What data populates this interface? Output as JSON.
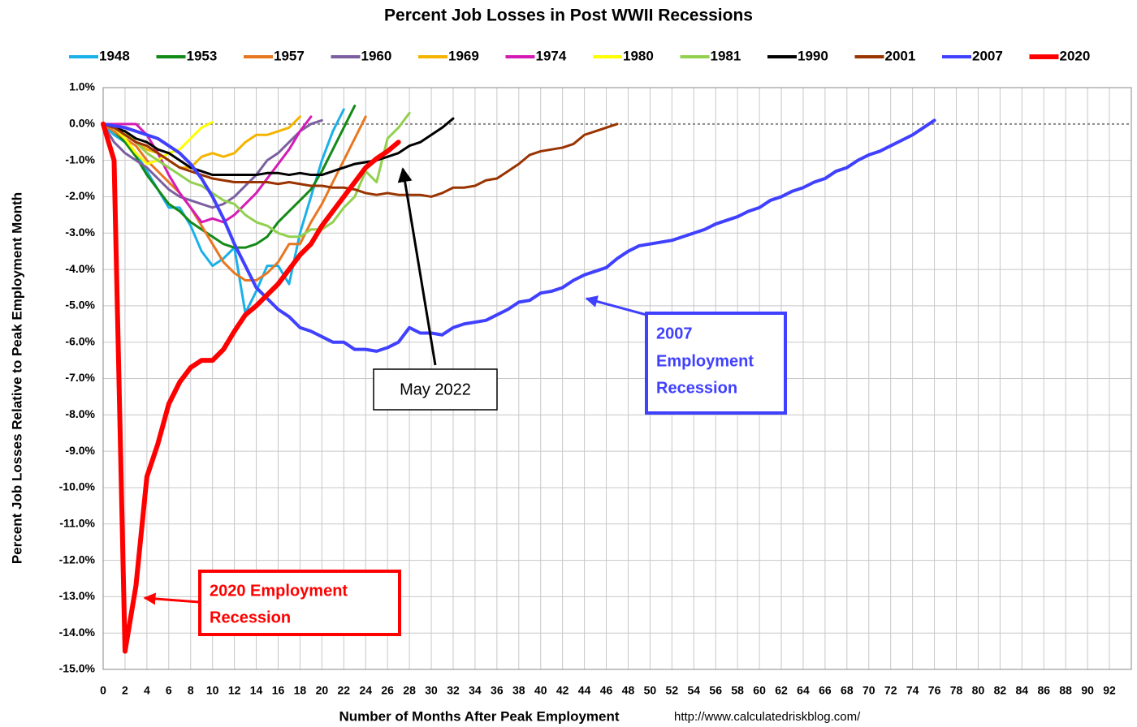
{
  "chart_data": {
    "type": "line",
    "title": "Percent Job Losses in Post WWII Recessions",
    "xlabel": "Number of Months After Peak Employment",
    "ylabel": "Percent Job Losses Relative to Peak Employment Month",
    "source": "http://www.calculatedriskblog.com/",
    "x": [
      0,
      1,
      2,
      3,
      4,
      5,
      6,
      7,
      8,
      9,
      10,
      11,
      12,
      13,
      14,
      15,
      16,
      17,
      18,
      19,
      20,
      21,
      22,
      23,
      24,
      25,
      26,
      27,
      28,
      29,
      30,
      31,
      32,
      33,
      34,
      35,
      36,
      37,
      38,
      39,
      40,
      41,
      42,
      43,
      44,
      45,
      46,
      47,
      48,
      49,
      50,
      51,
      52,
      53,
      54,
      55,
      56,
      57,
      58,
      59,
      60,
      61,
      62,
      63,
      64,
      65,
      66,
      67,
      68,
      69,
      70,
      71,
      72,
      73,
      74,
      75,
      76
    ],
    "xlim": [
      0,
      94
    ],
    "xticks": [
      0,
      2,
      4,
      6,
      8,
      10,
      12,
      14,
      16,
      18,
      20,
      22,
      24,
      26,
      28,
      30,
      32,
      34,
      36,
      38,
      40,
      42,
      44,
      46,
      48,
      50,
      52,
      54,
      56,
      58,
      60,
      62,
      64,
      66,
      68,
      70,
      72,
      74,
      76,
      78,
      80,
      82,
      84,
      86,
      88,
      90,
      92
    ],
    "ylim": [
      -15,
      1
    ],
    "yticks": [
      {
        "value": 1,
        "label": "1.0%"
      },
      {
        "value": 0,
        "label": "0.0%"
      },
      {
        "value": -1,
        "label": "-1.0%"
      },
      {
        "value": -2,
        "label": "-2.0%"
      },
      {
        "value": -3,
        "label": "-3.0%"
      },
      {
        "value": -4,
        "label": "-4.0%"
      },
      {
        "value": -5,
        "label": "-5.0%"
      },
      {
        "value": -6,
        "label": "-6.0%"
      },
      {
        "value": -7,
        "label": "-7.0%"
      },
      {
        "value": -8,
        "label": "-8.0%"
      },
      {
        "value": -9,
        "label": "-9.0%"
      },
      {
        "value": -10,
        "label": "-10.0%"
      },
      {
        "value": -11,
        "label": "-11.0%"
      },
      {
        "value": -12,
        "label": "-12.0%"
      },
      {
        "value": -13,
        "label": "-13.0%"
      },
      {
        "value": -14,
        "label": "-14.0%"
      },
      {
        "value": -15,
        "label": "-15.0%"
      }
    ],
    "grid": true,
    "legend": "top",
    "series": [
      {
        "name": "1948",
        "color": "#1ab0e8",
        "line_width": 3,
        "values": [
          0,
          -0.3,
          -0.5,
          -0.8,
          -1.3,
          -1.8,
          -2.3,
          -2.3,
          -2.8,
          -3.5,
          -3.9,
          -3.7,
          -3.4,
          -5.2,
          -4.6,
          -3.9,
          -3.9,
          -4.4,
          -3.0,
          -2.0,
          -1.0,
          -0.2,
          0.4,
          null,
          null,
          null,
          null,
          null,
          null,
          null,
          null,
          null,
          null,
          null,
          null,
          null,
          null,
          null,
          null,
          null,
          null,
          null,
          null,
          null,
          null,
          null,
          null,
          null,
          null,
          null,
          null,
          null,
          null,
          null,
          null,
          null,
          null,
          null,
          null,
          null,
          null,
          null,
          null,
          null,
          null,
          null,
          null,
          null,
          null,
          null,
          null,
          null,
          null,
          null,
          null,
          null,
          null
        ]
      },
      {
        "name": "1953",
        "color": "#138a17",
        "line_width": 3,
        "values": [
          0,
          -0.2,
          -0.5,
          -0.9,
          -1.4,
          -1.8,
          -2.2,
          -2.4,
          -2.7,
          -2.9,
          -3.1,
          -3.3,
          -3.4,
          -3.4,
          -3.3,
          -3.1,
          -2.7,
          -2.4,
          -2.1,
          -1.8,
          -1.3,
          -0.7,
          -0.1,
          0.5,
          null,
          null,
          null,
          null,
          null,
          null,
          null,
          null,
          null,
          null,
          null,
          null,
          null,
          null,
          null,
          null,
          null,
          null,
          null,
          null,
          null,
          null,
          null,
          null,
          null,
          null,
          null,
          null,
          null,
          null,
          null,
          null,
          null,
          null,
          null,
          null,
          null,
          null,
          null,
          null,
          null,
          null,
          null,
          null,
          null,
          null,
          null,
          null,
          null,
          null,
          null,
          null,
          null
        ]
      },
      {
        "name": "1957",
        "color": "#e87722",
        "line_width": 3,
        "values": [
          0,
          -0.2,
          -0.4,
          -0.6,
          -1.0,
          -1.3,
          -1.6,
          -1.9,
          -2.3,
          -2.8,
          -3.3,
          -3.8,
          -4.1,
          -4.3,
          -4.3,
          -4.1,
          -3.8,
          -3.3,
          -3.3,
          -2.7,
          -2.2,
          -1.6,
          -1.0,
          -0.4,
          0.2,
          null,
          null,
          null,
          null,
          null,
          null,
          null,
          null,
          null,
          null,
          null,
          null,
          null,
          null,
          null,
          null,
          null,
          null,
          null,
          null,
          null,
          null,
          null,
          null,
          null,
          null,
          null,
          null,
          null,
          null,
          null,
          null,
          null,
          null,
          null,
          null,
          null,
          null,
          null,
          null,
          null,
          null,
          null,
          null,
          null,
          null,
          null,
          null,
          null,
          null,
          null,
          null
        ]
      },
      {
        "name": "1960",
        "color": "#7b5fa0",
        "line_width": 3,
        "values": [
          0,
          -0.5,
          -0.8,
          -1.0,
          -1.2,
          -1.5,
          -1.8,
          -2.0,
          -2.1,
          -2.2,
          -2.3,
          -2.2,
          -2.0,
          -1.7,
          -1.4,
          -1.0,
          -0.8,
          -0.5,
          -0.2,
          0,
          0.1,
          null,
          null,
          null,
          null,
          null,
          null,
          null,
          null,
          null,
          null,
          null,
          null,
          null,
          null,
          null,
          null,
          null,
          null,
          null,
          null,
          null,
          null,
          null,
          null,
          null,
          null,
          null,
          null,
          null,
          null,
          null,
          null,
          null,
          null,
          null,
          null,
          null,
          null,
          null,
          null,
          null,
          null,
          null,
          null,
          null,
          null,
          null,
          null,
          null,
          null,
          null,
          null,
          null,
          null,
          null,
          null
        ]
      },
      {
        "name": "1969",
        "color": "#f4b400",
        "line_width": 3,
        "values": [
          0,
          -0.1,
          -0.3,
          -0.5,
          -0.7,
          -0.8,
          -1.0,
          -1.2,
          -1.2,
          -0.9,
          -0.8,
          -0.9,
          -0.8,
          -0.5,
          -0.3,
          -0.3,
          -0.2,
          -0.1,
          0.2,
          null,
          null,
          null,
          null,
          null,
          null,
          null,
          null,
          null,
          null,
          null,
          null,
          null,
          null,
          null,
          null,
          null,
          null,
          null,
          null,
          null,
          null,
          null,
          null,
          null,
          null,
          null,
          null,
          null,
          null,
          null,
          null,
          null,
          null,
          null,
          null,
          null,
          null,
          null,
          null,
          null,
          null,
          null,
          null,
          null,
          null,
          null,
          null,
          null,
          null,
          null,
          null,
          null,
          null,
          null,
          null,
          null,
          null
        ]
      },
      {
        "name": "1974",
        "color": "#d41cb5",
        "line_width": 3,
        "values": [
          0,
          0,
          0,
          0,
          -0.3,
          -0.8,
          -1.4,
          -1.9,
          -2.3,
          -2.7,
          -2.6,
          -2.7,
          -2.5,
          -2.2,
          -1.9,
          -1.5,
          -1.1,
          -0.7,
          -0.2,
          0.2,
          null,
          null,
          null,
          null,
          null,
          null,
          null,
          null,
          null,
          null,
          null,
          null,
          null,
          null,
          null,
          null,
          null,
          null,
          null,
          null,
          null,
          null,
          null,
          null,
          null,
          null,
          null,
          null,
          null,
          null,
          null,
          null,
          null,
          null,
          null,
          null,
          null,
          null,
          null,
          null,
          null,
          null,
          null,
          null,
          null,
          null,
          null,
          null,
          null,
          null,
          null,
          null,
          null,
          null,
          null,
          null,
          null
        ]
      },
      {
        "name": "1980",
        "color": "#ffff00",
        "line_width": 3,
        "values": [
          0,
          -0.1,
          -0.4,
          -0.8,
          -1.1,
          -1.0,
          -0.8,
          -0.7,
          -0.4,
          -0.1,
          0.05,
          null,
          null,
          null,
          null,
          null,
          null,
          null,
          null,
          null,
          null,
          null,
          null,
          null,
          null,
          null,
          null,
          null,
          null,
          null,
          null,
          null,
          null,
          null,
          null,
          null,
          null,
          null,
          null,
          null,
          null,
          null,
          null,
          null,
          null,
          null,
          null,
          null,
          null,
          null,
          null,
          null,
          null,
          null,
          null,
          null,
          null,
          null,
          null,
          null,
          null,
          null,
          null,
          null,
          null,
          null,
          null,
          null,
          null,
          null,
          null,
          null,
          null,
          null,
          null,
          null,
          null
        ]
      },
      {
        "name": "1981",
        "color": "#92d050",
        "line_width": 3,
        "values": [
          0,
          -0.1,
          -0.2,
          -0.5,
          -0.8,
          -1.0,
          -1.2,
          -1.4,
          -1.6,
          -1.7,
          -1.9,
          -2.1,
          -2.2,
          -2.5,
          -2.7,
          -2.8,
          -3.0,
          -3.1,
          -3.1,
          -2.9,
          -2.9,
          -2.7,
          -2.3,
          -2.0,
          -1.3,
          -1.6,
          -0.4,
          -0.1,
          0.3,
          null,
          null,
          null,
          null,
          null,
          null,
          null,
          null,
          null,
          null,
          null,
          null,
          null,
          null,
          null,
          null,
          null,
          null,
          null,
          null,
          null,
          null,
          null,
          null,
          null,
          null,
          null,
          null,
          null,
          null,
          null,
          null,
          null,
          null,
          null,
          null,
          null,
          null,
          null,
          null,
          null,
          null,
          null,
          null,
          null,
          null,
          null,
          null
        ]
      },
      {
        "name": "1990",
        "color": "#000000",
        "line_width": 3,
        "values": [
          0,
          -0.1,
          -0.2,
          -0.4,
          -0.5,
          -0.7,
          -0.8,
          -1.0,
          -1.2,
          -1.3,
          -1.4,
          -1.4,
          -1.4,
          -1.4,
          -1.4,
          -1.35,
          -1.35,
          -1.4,
          -1.35,
          -1.4,
          -1.4,
          -1.3,
          -1.2,
          -1.1,
          -1.05,
          -1.0,
          -0.9,
          -0.8,
          -0.6,
          -0.5,
          -0.3,
          -0.1,
          0.15,
          null,
          null,
          null,
          null,
          null,
          null,
          null,
          null,
          null,
          null,
          null,
          null,
          null,
          null,
          null,
          null,
          null,
          null,
          null,
          null,
          null,
          null,
          null,
          null,
          null,
          null,
          null,
          null,
          null,
          null,
          null,
          null,
          null,
          null,
          null,
          null,
          null,
          null,
          null,
          null,
          null,
          null,
          null,
          null
        ]
      },
      {
        "name": "2001",
        "color": "#993300",
        "line_width": 3,
        "values": [
          0,
          -0.1,
          -0.3,
          -0.5,
          -0.6,
          -0.8,
          -1.0,
          -1.2,
          -1.3,
          -1.4,
          -1.5,
          -1.55,
          -1.6,
          -1.6,
          -1.6,
          -1.6,
          -1.65,
          -1.6,
          -1.65,
          -1.7,
          -1.7,
          -1.75,
          -1.75,
          -1.8,
          -1.9,
          -1.95,
          -1.9,
          -1.95,
          -1.95,
          -1.95,
          -2.0,
          -1.9,
          -1.75,
          -1.75,
          -1.7,
          -1.55,
          -1.5,
          -1.3,
          -1.1,
          -0.85,
          -0.75,
          -0.7,
          -0.65,
          -0.55,
          -0.3,
          -0.2,
          -0.1,
          0,
          null,
          null,
          null,
          null,
          null,
          null,
          null,
          null,
          null,
          null,
          null,
          null,
          null,
          null,
          null,
          null,
          null,
          null,
          null,
          null,
          null,
          null,
          null,
          null,
          null,
          null,
          null,
          null,
          null
        ]
      },
      {
        "name": "2007",
        "color": "#4040ff",
        "line_width": 4,
        "values": [
          0,
          -0.05,
          -0.1,
          -0.2,
          -0.3,
          -0.4,
          -0.6,
          -0.8,
          -1.1,
          -1.5,
          -2.0,
          -2.6,
          -3.3,
          -3.9,
          -4.5,
          -4.8,
          -5.1,
          -5.3,
          -5.6,
          -5.7,
          -5.85,
          -6.0,
          -6.0,
          -6.2,
          -6.2,
          -6.25,
          -6.15,
          -6.0,
          -5.6,
          -5.75,
          -5.75,
          -5.8,
          -5.6,
          -5.5,
          -5.45,
          -5.4,
          -5.25,
          -5.1,
          -4.9,
          -4.85,
          -4.65,
          -4.6,
          -4.5,
          -4.3,
          -4.15,
          -4.05,
          -3.95,
          -3.7,
          -3.5,
          -3.35,
          -3.3,
          -3.25,
          -3.2,
          -3.1,
          -3.0,
          -2.9,
          -2.75,
          -2.65,
          -2.55,
          -2.4,
          -2.3,
          -2.1,
          -2.0,
          -1.85,
          -1.75,
          -1.6,
          -1.5,
          -1.3,
          -1.2,
          -1.0,
          -0.85,
          -0.75,
          -0.6,
          -0.45,
          -0.3,
          -0.1,
          0.1
        ]
      },
      {
        "name": "2020",
        "color": "#ff0000",
        "line_width": 6,
        "values": [
          0,
          -1.0,
          -14.5,
          -12.7,
          -9.7,
          -8.8,
          -7.7,
          -7.1,
          -6.7,
          -6.5,
          -6.5,
          -6.2,
          -5.7,
          -5.25,
          -5.0,
          -4.7,
          -4.4,
          -4.0,
          -3.6,
          -3.3,
          -2.8,
          -2.4,
          -2.0,
          -1.6,
          -1.2,
          -0.95,
          -0.75,
          -0.5,
          null,
          null,
          null,
          null,
          null,
          null,
          null,
          null,
          null,
          null,
          null,
          null,
          null,
          null,
          null,
          null,
          null,
          null,
          null,
          null,
          null,
          null,
          null,
          null,
          null,
          null,
          null,
          null,
          null,
          null,
          null,
          null,
          null,
          null,
          null,
          null,
          null,
          null,
          null,
          null,
          null,
          null,
          null,
          null,
          null,
          null,
          null,
          null,
          null
        ]
      }
    ],
    "annotations": [
      {
        "text": "May 2022"
      },
      {
        "text": [
          "2007",
          "Employment",
          "Recession"
        ],
        "color": "#4040ff"
      },
      {
        "text": [
          "2020 Employment",
          "Recession"
        ],
        "color": "#ff0000"
      }
    ]
  }
}
